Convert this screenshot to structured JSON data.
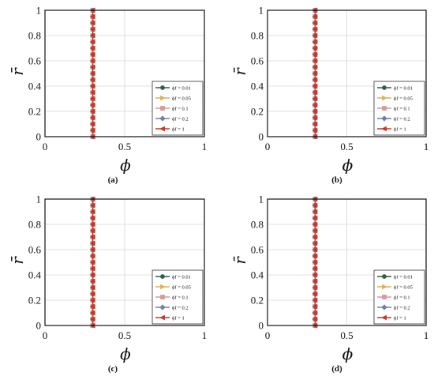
{
  "chart_data": [
    {
      "panel": "(a)",
      "type": "line",
      "xlabel": "ϕ",
      "ylabel": "r̄",
      "xlim": [
        0,
        1
      ],
      "ylim": [
        0,
        1
      ],
      "xticks": [
        "0",
        "0.5",
        "1"
      ],
      "yticks": [
        "0",
        "0.2",
        "0.4",
        "0.6",
        "0.8",
        "1"
      ],
      "grid": true,
      "legend": "bottom-right",
      "series": [
        {
          "name": "ϕf = 0.01",
          "color": "#2e5e4e",
          "marker": "circle",
          "x": 0.3,
          "y": [
            0,
            0.05,
            0.1,
            0.15,
            0.2,
            0.25,
            0.3,
            0.35,
            0.4,
            0.45,
            0.5,
            0.55,
            0.6,
            0.65,
            0.7,
            0.75,
            0.8,
            0.85,
            0.9,
            0.95,
            1
          ]
        },
        {
          "name": "ϕf = 0.05",
          "color": "#d9b25a",
          "marker": "triangle-right",
          "x": 0.3,
          "y": [
            0,
            0.05,
            0.1,
            0.15,
            0.2,
            0.25,
            0.3,
            0.35,
            0.4,
            0.45,
            0.5,
            0.55,
            0.6,
            0.65,
            0.7,
            0.75,
            0.8,
            0.85,
            0.9,
            0.95,
            1
          ]
        },
        {
          "name": "ϕf = 0.1",
          "color": "#d69a9a",
          "marker": "square",
          "x": 0.3,
          "y": [
            0,
            0.05,
            0.1,
            0.15,
            0.2,
            0.25,
            0.3,
            0.35,
            0.4,
            0.45,
            0.5,
            0.55,
            0.6,
            0.65,
            0.7,
            0.75,
            0.8,
            0.85,
            0.9,
            0.95,
            1
          ]
        },
        {
          "name": "ϕf = 0.2",
          "color": "#6f7fae",
          "marker": "diamond",
          "x": 0.3,
          "y": [
            0,
            0.05,
            0.1,
            0.15,
            0.2,
            0.25,
            0.3,
            0.35,
            0.4,
            0.45,
            0.5,
            0.55,
            0.6,
            0.65,
            0.7,
            0.75,
            0.8,
            0.85,
            0.9,
            0.95,
            1
          ]
        },
        {
          "name": "ϕf = 1",
          "color": "#c0392b",
          "marker": "triangle-left",
          "x": 0.3,
          "y": [
            0,
            0.05,
            0.1,
            0.15,
            0.2,
            0.25,
            0.3,
            0.35,
            0.4,
            0.45,
            0.5,
            0.55,
            0.6,
            0.65,
            0.7,
            0.75,
            0.8,
            0.85,
            0.9,
            0.95,
            1
          ]
        }
      ]
    },
    {
      "panel": "(b)",
      "type": "line",
      "xlabel": "ϕ",
      "ylabel": "r̄",
      "xlim": [
        0,
        1
      ],
      "ylim": [
        0,
        1
      ],
      "xticks": [
        "0",
        "0.5",
        "1"
      ],
      "yticks": [
        "0",
        "0.2",
        "0.4",
        "0.6",
        "0.8",
        "1"
      ],
      "grid": true,
      "legend": "bottom-right",
      "series": [
        {
          "name": "ϕf = 0.01",
          "color": "#2e5e4e",
          "marker": "circle",
          "x": 0.3,
          "y": [
            0,
            0.05,
            0.1,
            0.15,
            0.2,
            0.25,
            0.3,
            0.35,
            0.4,
            0.45,
            0.5,
            0.55,
            0.6,
            0.65,
            0.7,
            0.75,
            0.8,
            0.85,
            0.9,
            0.95,
            1
          ]
        },
        {
          "name": "ϕf = 0.05",
          "color": "#d9b25a",
          "marker": "triangle-right",
          "x": 0.3,
          "y": [
            0,
            0.05,
            0.1,
            0.15,
            0.2,
            0.25,
            0.3,
            0.35,
            0.4,
            0.45,
            0.5,
            0.55,
            0.6,
            0.65,
            0.7,
            0.75,
            0.8,
            0.85,
            0.9,
            0.95,
            1
          ]
        },
        {
          "name": "ϕf = 0.1",
          "color": "#d69a9a",
          "marker": "square",
          "x": 0.3,
          "y": [
            0,
            0.05,
            0.1,
            0.15,
            0.2,
            0.25,
            0.3,
            0.35,
            0.4,
            0.45,
            0.5,
            0.55,
            0.6,
            0.65,
            0.7,
            0.75,
            0.8,
            0.85,
            0.9,
            0.95,
            1
          ]
        },
        {
          "name": "ϕf = 0.2",
          "color": "#6f7fae",
          "marker": "diamond",
          "x": 0.3,
          "y": [
            0,
            0.05,
            0.1,
            0.15,
            0.2,
            0.25,
            0.3,
            0.35,
            0.4,
            0.45,
            0.5,
            0.55,
            0.6,
            0.65,
            0.7,
            0.75,
            0.8,
            0.85,
            0.9,
            0.95,
            1
          ]
        },
        {
          "name": "ϕf = 1",
          "color": "#c0392b",
          "marker": "triangle-left",
          "x": 0.3,
          "y": [
            0,
            0.05,
            0.1,
            0.15,
            0.2,
            0.25,
            0.3,
            0.35,
            0.4,
            0.45,
            0.5,
            0.55,
            0.6,
            0.65,
            0.7,
            0.75,
            0.8,
            0.85,
            0.9,
            0.95,
            1
          ]
        }
      ]
    },
    {
      "panel": "(c)",
      "type": "line",
      "xlabel": "ϕ",
      "ylabel": "r̄",
      "xlim": [
        0,
        1
      ],
      "ylim": [
        0,
        1
      ],
      "xticks": [
        "0",
        "0.5",
        "1"
      ],
      "yticks": [
        "0",
        "0.2",
        "0.4",
        "0.6",
        "0.8",
        "1"
      ],
      "grid": true,
      "legend": "bottom-right",
      "series": [
        {
          "name": "ϕf = 0.01",
          "color": "#2e5e4e",
          "marker": "circle",
          "x": 0.3,
          "y": [
            0,
            0.05,
            0.1,
            0.15,
            0.2,
            0.25,
            0.3,
            0.35,
            0.4,
            0.45,
            0.5,
            0.55,
            0.6,
            0.65,
            0.7,
            0.75,
            0.8,
            0.85,
            0.9,
            0.95,
            1
          ]
        },
        {
          "name": "ϕf = 0.05",
          "color": "#d9b25a",
          "marker": "triangle-right",
          "x": 0.3,
          "y": [
            0,
            0.05,
            0.1,
            0.15,
            0.2,
            0.25,
            0.3,
            0.35,
            0.4,
            0.45,
            0.5,
            0.55,
            0.6,
            0.65,
            0.7,
            0.75,
            0.8,
            0.85,
            0.9,
            0.95,
            1
          ]
        },
        {
          "name": "ϕf = 0.1",
          "color": "#d69a9a",
          "marker": "square",
          "x": 0.3,
          "y": [
            0,
            0.05,
            0.1,
            0.15,
            0.2,
            0.25,
            0.3,
            0.35,
            0.4,
            0.45,
            0.5,
            0.55,
            0.6,
            0.65,
            0.7,
            0.75,
            0.8,
            0.85,
            0.9,
            0.95,
            1
          ]
        },
        {
          "name": "ϕf = 0.2",
          "color": "#6f7fae",
          "marker": "diamond",
          "x": 0.3,
          "y": [
            0,
            0.05,
            0.1,
            0.15,
            0.2,
            0.25,
            0.3,
            0.35,
            0.4,
            0.45,
            0.5,
            0.55,
            0.6,
            0.65,
            0.7,
            0.75,
            0.8,
            0.85,
            0.9,
            0.95,
            1
          ]
        },
        {
          "name": "ϕf = 1",
          "color": "#c0392b",
          "marker": "triangle-left",
          "x": 0.3,
          "y": [
            0,
            0.05,
            0.1,
            0.15,
            0.2,
            0.25,
            0.3,
            0.35,
            0.4,
            0.45,
            0.5,
            0.55,
            0.6,
            0.65,
            0.7,
            0.75,
            0.8,
            0.85,
            0.9,
            0.95,
            1
          ]
        }
      ]
    },
    {
      "panel": "(d)",
      "type": "line",
      "xlabel": "ϕ",
      "ylabel": "r̄",
      "xlim": [
        0,
        1
      ],
      "ylim": [
        0,
        1
      ],
      "xticks": [
        "0",
        "0.5",
        "1"
      ],
      "yticks": [
        "0",
        "0.2",
        "0.4",
        "0.6",
        "0.8",
        "1"
      ],
      "grid": true,
      "legend": "bottom-right",
      "series": [
        {
          "name": "ϕf = 0.01",
          "color": "#2e5e4e",
          "marker": "circle",
          "x": 0.3,
          "y": [
            0,
            0.05,
            0.1,
            0.15,
            0.2,
            0.25,
            0.3,
            0.35,
            0.4,
            0.45,
            0.5,
            0.55,
            0.6,
            0.65,
            0.7,
            0.75,
            0.8,
            0.85,
            0.9,
            0.95,
            1
          ]
        },
        {
          "name": "ϕf = 0.05",
          "color": "#d9b25a",
          "marker": "triangle-right",
          "x": 0.3,
          "y": [
            0,
            0.05,
            0.1,
            0.15,
            0.2,
            0.25,
            0.3,
            0.35,
            0.4,
            0.45,
            0.5,
            0.55,
            0.6,
            0.65,
            0.7,
            0.75,
            0.8,
            0.85,
            0.9,
            0.95,
            1
          ]
        },
        {
          "name": "ϕf = 0.1",
          "color": "#d69a9a",
          "marker": "square",
          "x": 0.3,
          "y": [
            0,
            0.05,
            0.1,
            0.15,
            0.2,
            0.25,
            0.3,
            0.35,
            0.4,
            0.45,
            0.5,
            0.55,
            0.6,
            0.65,
            0.7,
            0.75,
            0.8,
            0.85,
            0.9,
            0.95,
            1
          ]
        },
        {
          "name": "ϕf = 0.2",
          "color": "#6f7fae",
          "marker": "diamond",
          "x": 0.3,
          "y": [
            0,
            0.05,
            0.1,
            0.15,
            0.2,
            0.25,
            0.3,
            0.35,
            0.4,
            0.45,
            0.5,
            0.55,
            0.6,
            0.65,
            0.7,
            0.75,
            0.8,
            0.85,
            0.9,
            0.95,
            1
          ]
        },
        {
          "name": "ϕf = 1",
          "color": "#c0392b",
          "marker": "triangle-left",
          "x": 0.3,
          "y": [
            0,
            0.05,
            0.1,
            0.15,
            0.2,
            0.25,
            0.3,
            0.35,
            0.4,
            0.45,
            0.5,
            0.55,
            0.6,
            0.65,
            0.7,
            0.75,
            0.8,
            0.85,
            0.9,
            0.95,
            1
          ]
        }
      ]
    }
  ]
}
